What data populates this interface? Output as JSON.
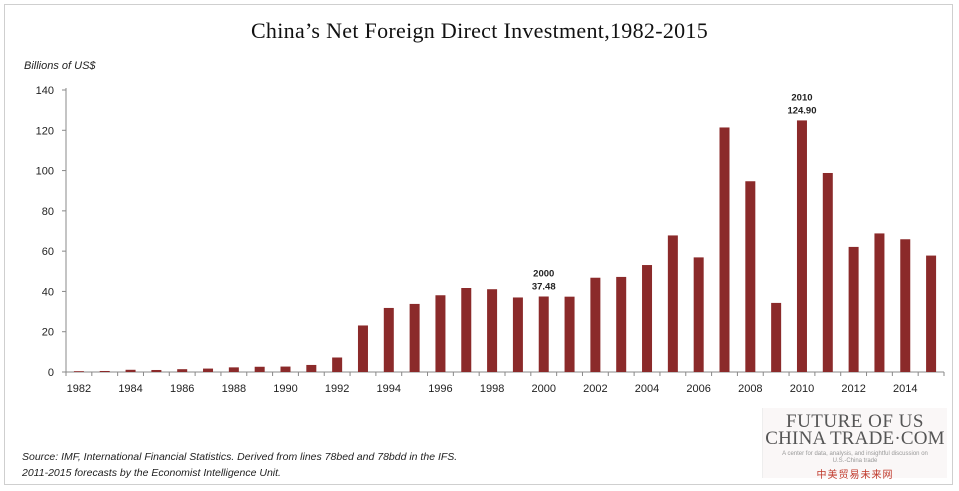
{
  "chart_data": {
    "type": "bar",
    "title": "China’s Net Foreign Direct Investment,1982-2015",
    "ylabel": "Billions of US$",
    "xlabel": "",
    "x": [
      1982,
      1983,
      1984,
      1985,
      1986,
      1987,
      1988,
      1989,
      1990,
      1991,
      1992,
      1993,
      1994,
      1995,
      1996,
      1997,
      1998,
      1999,
      2000,
      2001,
      2002,
      2003,
      2004,
      2005,
      2006,
      2007,
      2008,
      2009,
      2010,
      2011,
      2012,
      2013,
      2014,
      2015
    ],
    "values": [
      0.4,
      0.5,
      1.1,
      1.0,
      1.4,
      1.7,
      2.3,
      2.6,
      2.7,
      3.5,
      7.2,
      23.1,
      31.8,
      33.8,
      38.1,
      41.7,
      41.1,
      37.0,
      37.48,
      37.4,
      46.8,
      47.2,
      53.1,
      67.8,
      56.9,
      121.4,
      94.7,
      34.3,
      124.9,
      98.8,
      62.1,
      68.8,
      65.9,
      57.8
    ],
    "ylim": [
      0,
      140
    ],
    "yticks": [
      0,
      20,
      40,
      60,
      80,
      100,
      120,
      140
    ],
    "xtick_labels": [
      "1982",
      "1984",
      "1986",
      "1988",
      "1990",
      "1992",
      "1994",
      "1996",
      "1998",
      "2000",
      "2002",
      "2004",
      "2006",
      "2008",
      "2010",
      "2012",
      "2014"
    ],
    "bar_color": "#8b2a2a",
    "grid": false,
    "annotations": [
      {
        "year": "2000",
        "value": "37.48"
      },
      {
        "year": "2010",
        "value": "124.90"
      }
    ]
  },
  "source_line1": "Source: IMF, International Financial Statistics. Derived from lines 78bed and 78bdd in the IFS.",
  "source_line2": "2011-2015 forecasts by the Economist Intelligence Unit.",
  "logo": {
    "line1": "FUTURE OF US",
    "line2": "CHINA TRADE·COM",
    "tagline": "A center for data, analysis, and insightful discussion on U.S.-China trade",
    "chinese": "中美贸易未来网"
  }
}
